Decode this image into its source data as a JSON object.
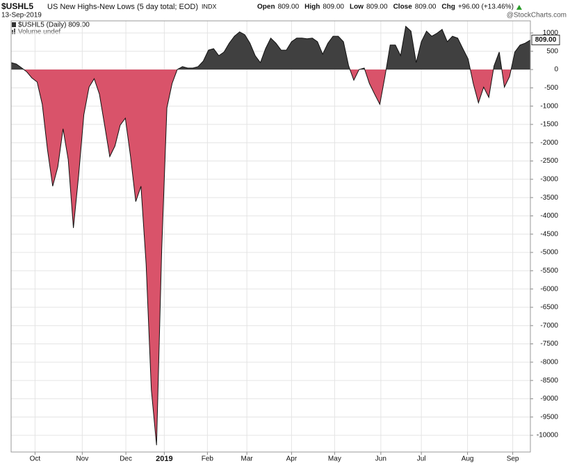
{
  "chart_data": {
    "type": "area",
    "symbol": "$USHL5",
    "title": "US New Highs-New Lows (5 day total; EOD)",
    "exchange": "INDX",
    "date": "13-Sep-2019",
    "quote": [
      {
        "label": "Open",
        "value": "809.00"
      },
      {
        "label": "High",
        "value": "809.00"
      },
      {
        "label": "Low",
        "value": "809.00"
      },
      {
        "label": "Close",
        "value": "809.00"
      },
      {
        "label": "Chg",
        "value": "+96.00 (+13.46%)"
      }
    ],
    "watermark": "@StockCharts.com",
    "legend": [
      "$USHL5 (Daily) 809.00",
      "Volume undef"
    ],
    "last_label": "809.00",
    "x": [
      0,
      1,
      2,
      3,
      4,
      5,
      6,
      7,
      8,
      9,
      10,
      11,
      12,
      13,
      14,
      15,
      16,
      17,
      18,
      19,
      20,
      21,
      22,
      23,
      24,
      25,
      26,
      27,
      28,
      29,
      30,
      31,
      32,
      33,
      34,
      35,
      36,
      37,
      38,
      39,
      40,
      41,
      42,
      43,
      44,
      45,
      46,
      47,
      48,
      49,
      50,
      51,
      52,
      53,
      54,
      55,
      56,
      57,
      58,
      59,
      60,
      61,
      62,
      63,
      64,
      65,
      66,
      67,
      68,
      69,
      70,
      71,
      72,
      73,
      74,
      75,
      76,
      77,
      78,
      79,
      80,
      81,
      82,
      83,
      84,
      85,
      86,
      87,
      88,
      89,
      90,
      91,
      92,
      93,
      94,
      95,
      96,
      97,
      98,
      99,
      100
    ],
    "values": [
      190,
      150,
      50,
      -60,
      -230,
      -340,
      -950,
      -2190,
      -3190,
      -2660,
      -1620,
      -2470,
      -4330,
      -2900,
      -1240,
      -480,
      -250,
      -670,
      -1520,
      -2380,
      -2090,
      -1520,
      -1330,
      -2380,
      -3610,
      -3190,
      -5320,
      -8750,
      -10270,
      -4940,
      -1050,
      -380,
      0,
      80,
      40,
      40,
      80,
      230,
      530,
      570,
      380,
      480,
      720,
      910,
      1030,
      950,
      720,
      380,
      190,
      570,
      860,
      720,
      530,
      530,
      760,
      860,
      860,
      840,
      860,
      760,
      420,
      720,
      910,
      910,
      760,
      100,
      -290,
      0,
      40,
      -380,
      -670,
      -950,
      -190,
      670,
      670,
      380,
      1180,
      1050,
      190,
      760,
      1050,
      910,
      990,
      1100,
      760,
      910,
      860,
      570,
      290,
      -380,
      -910,
      -480,
      -760,
      100,
      480,
      -480,
      -190,
      480,
      670,
      720,
      809
    ],
    "positive_color": "#404040",
    "negative_color": "#d9536a",
    "xlim": [
      0,
      100
    ],
    "xticks": [
      {
        "value": 4.6,
        "label": "Oct"
      },
      {
        "value": 13.7,
        "label": "Nov"
      },
      {
        "value": 22.1,
        "label": "Dec"
      },
      {
        "value": 29.5,
        "label": "2019"
      },
      {
        "value": 37.8,
        "label": "Feb"
      },
      {
        "value": 45.4,
        "label": "Mar"
      },
      {
        "value": 54.0,
        "label": "Apr"
      },
      {
        "value": 62.3,
        "label": "May"
      },
      {
        "value": 71.2,
        "label": "Jun"
      },
      {
        "value": 79.0,
        "label": "Jul"
      },
      {
        "value": 87.9,
        "label": "Aug"
      },
      {
        "value": 96.6,
        "label": "Sep"
      }
    ],
    "ylim": [
      -10456,
      1331
    ],
    "yticks": [
      1000,
      500,
      0,
      -500,
      -1000,
      -1500,
      -2000,
      -2500,
      -3000,
      -3500,
      -4000,
      -4500,
      -5000,
      -5500,
      -6000,
      -6500,
      -7000,
      -7500,
      -8000,
      -8500,
      -9000,
      -9500,
      -10000
    ],
    "grid": true
  }
}
